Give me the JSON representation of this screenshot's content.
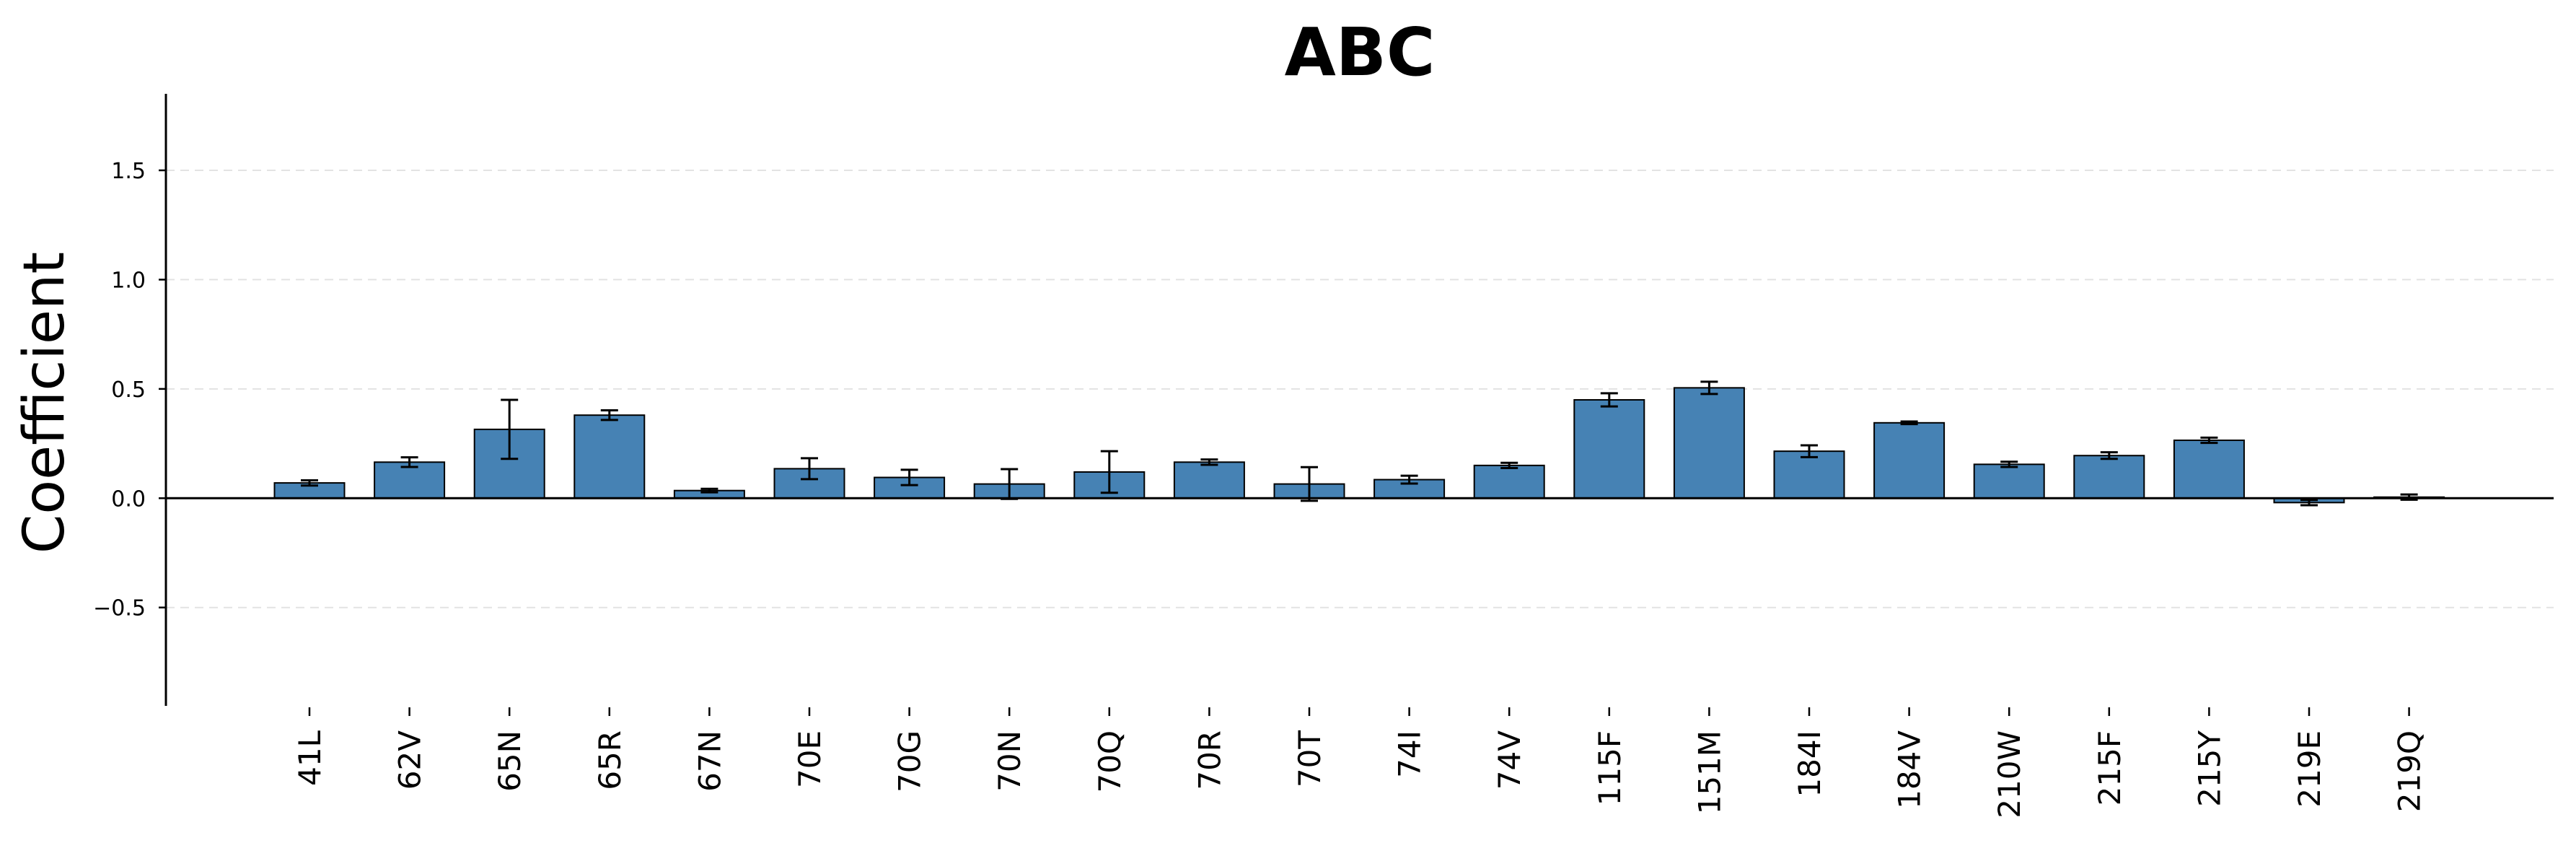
{
  "chart_data": {
    "type": "bar",
    "title": "ABC",
    "xlabel": "",
    "ylabel": "Coefficient",
    "ylim": [
      -0.95,
      1.85
    ],
    "yticks": [
      -0.5,
      0.0,
      0.5,
      1.0,
      1.5
    ],
    "ytick_labels": [
      "−0.5",
      "0.0",
      "0.5",
      "1.0",
      "1.5"
    ],
    "grid": true,
    "bar_color": "#4682b4",
    "categories": [
      "41L",
      "62V",
      "65N",
      "65R",
      "67N",
      "70E",
      "70G",
      "70N",
      "70Q",
      "70R",
      "70T",
      "74I",
      "74V",
      "115F",
      "151M",
      "184I",
      "184V",
      "210W",
      "215F",
      "215Y",
      "219E",
      "219Q"
    ],
    "values": [
      0.07,
      0.165,
      0.315,
      0.38,
      0.035,
      0.135,
      0.095,
      0.065,
      0.12,
      0.165,
      0.065,
      0.085,
      0.15,
      0.45,
      0.505,
      0.215,
      0.345,
      0.155,
      0.195,
      0.265,
      -0.02,
      0.005
    ],
    "errors": [
      0.012,
      0.022,
      0.135,
      0.022,
      0.008,
      0.048,
      0.035,
      0.068,
      0.095,
      0.012,
      0.077,
      0.018,
      0.012,
      0.03,
      0.028,
      0.027,
      0.006,
      0.012,
      0.015,
      0.012,
      0.012,
      0.012
    ]
  }
}
